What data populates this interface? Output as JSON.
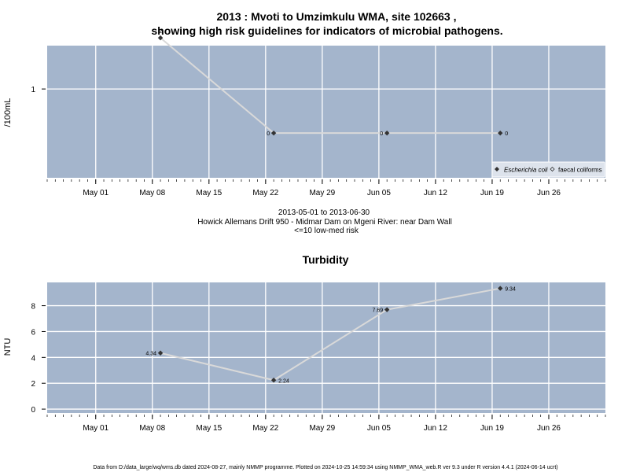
{
  "chart_data": [
    {
      "type": "line",
      "title_line1": "2013 : Mvoti to Umzimkulu WMA, site 102663 ,",
      "title_line2": "showing high risk guidelines for indicators of microbial pathogens.",
      "ylabel": "/100mL",
      "y_scale": "log",
      "ylim": [
        0.3,
        1.8
      ],
      "yticks": [
        "1"
      ],
      "xlim": [
        "2013-04-25",
        "2013-07-03"
      ],
      "xticks": [
        "May 01",
        "May 08",
        "May 15",
        "May 22",
        "May 29",
        "Jun 05",
        "Jun 12",
        "Jun 19",
        "Jun 26"
      ],
      "grid": true,
      "legend_position": "bottom-right",
      "series": [
        {
          "name": "Escherichia coli",
          "x": [
            "2013-05-09",
            "2013-05-23",
            "2013-06-06",
            "2013-06-20"
          ],
          "values": [
            2,
            0,
            0,
            0
          ],
          "labels": [
            "2",
            "0",
            "0",
            "0"
          ]
        }
      ],
      "legend": [
        {
          "label": "Escherichia coli",
          "marker": "filled-diamond"
        },
        {
          "label": "faecal coliforms",
          "marker": "open-diamond"
        }
      ],
      "info_line1": "2013-05-01 to 2013-06-30",
      "info_line2": "Howick Allemans Drift 950 - Midmar Dam on Mgeni River: near Dam Wall",
      "info_line3": "<=10 low-med risk"
    },
    {
      "type": "line",
      "title": "Turbidity",
      "ylabel": "NTU",
      "ylim": [
        -0.3,
        9.8
      ],
      "yticks": [
        0,
        2,
        4,
        6,
        8
      ],
      "xlim": [
        "2013-04-25",
        "2013-07-03"
      ],
      "xticks": [
        "May 01",
        "May 08",
        "May 15",
        "May 22",
        "May 29",
        "Jun 05",
        "Jun 12",
        "Jun 19",
        "Jun 26"
      ],
      "grid": true,
      "series": [
        {
          "name": "",
          "x": [
            "2013-05-09",
            "2013-05-23",
            "2013-06-06",
            "2013-06-20"
          ],
          "values": [
            4.34,
            2.24,
            7.69,
            9.34
          ],
          "labels": [
            "4.34",
            "2.24",
            "7.69",
            "9.34"
          ]
        }
      ]
    }
  ],
  "footer": "Data from D:/data_large/wq/wms.db dated 2024-08-27, mainly NMMP programme. Plotted on 2024-10-25 14:59:34 using NMMP_WMA_web.R ver 9.3 under R version 4.4.1 (2024-06-14 ucrt)",
  "colors": {
    "panel": "#a4b5cc",
    "grid": "#ffffff",
    "line": "#d9d9d9",
    "point": "#333333",
    "legend_bg": "#dde3ec"
  }
}
